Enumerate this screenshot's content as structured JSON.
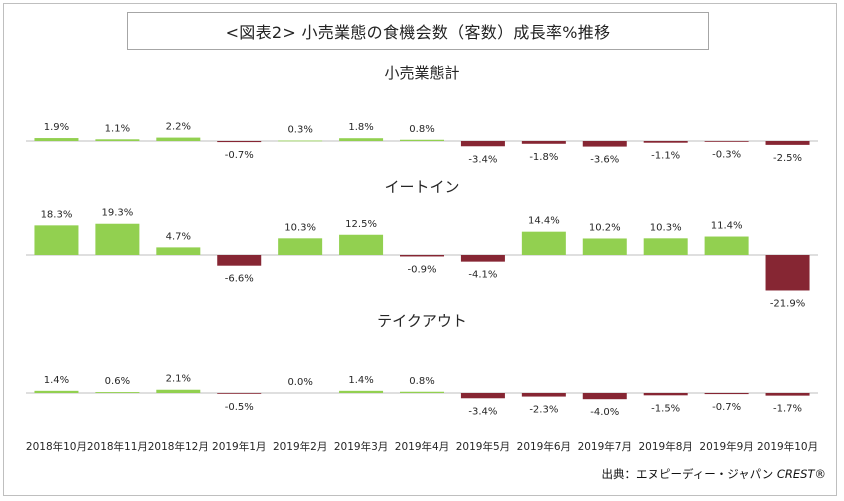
{
  "title": "<図表2> 小売業態の食機会数（客数）成長率%推移",
  "source": {
    "label": "出典：エヌピーディー・ジャパン",
    "brand": "CREST®"
  },
  "colors": {
    "positive": "#92d050",
    "negative": "#862633",
    "axis": "#bfbfbf",
    "text": "#262626"
  },
  "chart_data": {
    "type": "bar",
    "categories": [
      "2018年10月",
      "2018年11月",
      "2018年12月",
      "2019年1月",
      "2019年2月",
      "2019年3月",
      "2019年4月",
      "2019年5月",
      "2019年6月",
      "2019年7月",
      "2019年8月",
      "2019年9月",
      "2019年10月"
    ],
    "panels": [
      {
        "title": "小売業態計",
        "labels": [
          "1.9%",
          "1.1%",
          "2.2%",
          "-0.7%",
          "0.3%",
          "1.8%",
          "0.8%",
          "-3.4%",
          "-1.8%",
          "-3.6%",
          "-1.1%",
          "-0.3%",
          "-2.5%"
        ],
        "values": [
          1.9,
          1.1,
          2.2,
          -0.7,
          0.3,
          1.8,
          0.8,
          -3.4,
          -1.8,
          -3.6,
          -1.1,
          -0.3,
          -2.5
        ]
      },
      {
        "title": "イートイン",
        "labels": [
          "18.3%",
          "19.3%",
          "4.7%",
          "-6.6%",
          "10.3%",
          "12.5%",
          "-0.9%",
          "-4.1%",
          "14.4%",
          "10.2%",
          "10.3%",
          "11.4%",
          "-21.9%"
        ],
        "values": [
          18.3,
          19.3,
          4.7,
          -6.6,
          10.3,
          12.5,
          -0.9,
          -4.1,
          14.4,
          10.2,
          10.3,
          11.4,
          -21.9
        ]
      },
      {
        "title": "テイクアウト",
        "labels": [
          "1.4%",
          "0.6%",
          "2.1%",
          "-0.5%",
          "0.0%",
          "1.4%",
          "0.8%",
          "-3.4%",
          "-2.3%",
          "-4.0%",
          "-1.5%",
          "-0.7%",
          "-1.7%"
        ],
        "values": [
          1.4,
          0.6,
          2.1,
          -0.5,
          0.0,
          1.4,
          0.8,
          -3.4,
          -2.3,
          -4.0,
          -1.5,
          -0.7,
          -1.7
        ]
      }
    ]
  }
}
